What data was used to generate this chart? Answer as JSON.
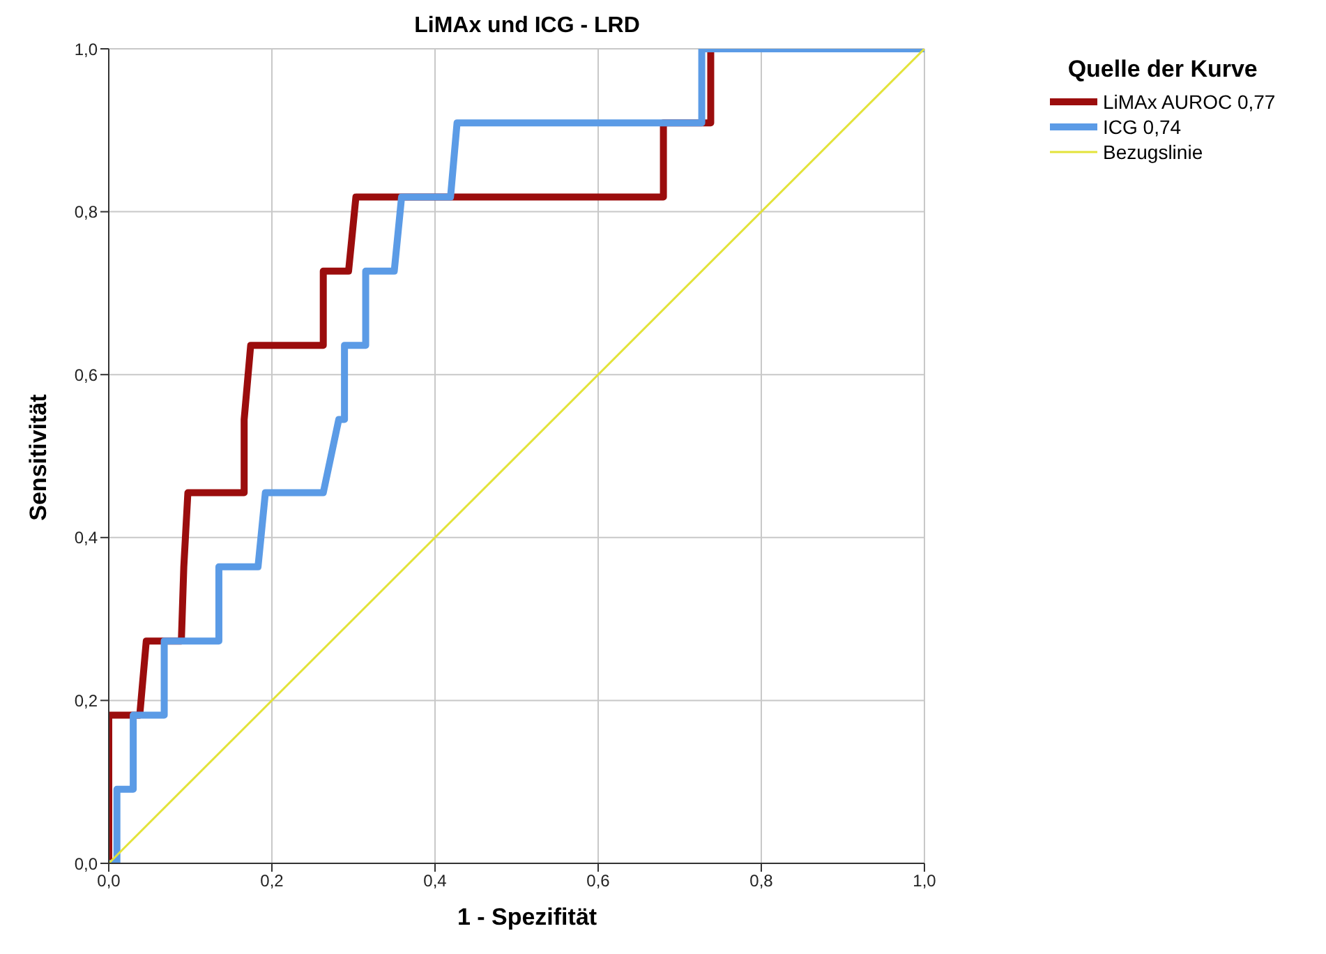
{
  "chart_data": {
    "type": "line",
    "title": "LiMAx und ICG - LRD",
    "xlabel": "1 - Spezifität",
    "ylabel": "Sensitivität",
    "legend_title": "Quelle der Kurve",
    "xlim": [
      0,
      1
    ],
    "ylim": [
      0,
      1
    ],
    "xticks": [
      {
        "value": 0,
        "label": "0,0"
      },
      {
        "value": 0.2,
        "label": "0,2"
      },
      {
        "value": 0.4,
        "label": "0,4"
      },
      {
        "value": 0.6,
        "label": "0,6"
      },
      {
        "value": 0.8,
        "label": "0,8"
      },
      {
        "value": 1,
        "label": "1,0"
      }
    ],
    "yticks": [
      {
        "value": 0,
        "label": "0,0"
      },
      {
        "value": 0.2,
        "label": "0,2"
      },
      {
        "value": 0.4,
        "label": "0,4"
      },
      {
        "value": 0.6,
        "label": "0,6"
      },
      {
        "value": 0.8,
        "label": "0,8"
      },
      {
        "value": 1,
        "label": "1,0"
      }
    ],
    "grid": true,
    "legend": "top right",
    "marker": "none",
    "line_style": "solid",
    "series": [
      {
        "name": "LiMAx AUROC 0,77",
        "color": "#9b0d0d",
        "x": [
          0,
          0,
          0.038,
          0.046,
          0.089,
          0.092,
          0.097,
          0.166,
          0.166,
          0.174,
          0.263,
          0.263,
          0.294,
          0.303,
          0.68,
          0.68,
          0.738,
          0.738
        ],
        "values": [
          0,
          0.182,
          0.182,
          0.273,
          0.273,
          0.364,
          0.455,
          0.455,
          0.545,
          0.636,
          0.636,
          0.727,
          0.727,
          0.818,
          0.818,
          0.909,
          0.909,
          1
        ]
      },
      {
        "name": "ICG 0,74",
        "color": "#5b9be6",
        "x": [
          0,
          0.01,
          0.01,
          0.03,
          0.03,
          0.068,
          0.068,
          0.135,
          0.135,
          0.183,
          0.192,
          0.263,
          0.282,
          0.289,
          0.289,
          0.315,
          0.315,
          0.35,
          0.359,
          0.419,
          0.427,
          0.727,
          0.727,
          1
        ],
        "values": [
          0,
          0,
          0.091,
          0.091,
          0.182,
          0.182,
          0.273,
          0.273,
          0.364,
          0.364,
          0.455,
          0.455,
          0.545,
          0.545,
          0.636,
          0.636,
          0.727,
          0.727,
          0.818,
          0.818,
          0.909,
          0.909,
          1,
          1
        ]
      },
      {
        "name": "Bezugslinie",
        "color": "#e3e33a",
        "x": [
          0,
          1
        ],
        "values": [
          0,
          1
        ]
      }
    ]
  }
}
